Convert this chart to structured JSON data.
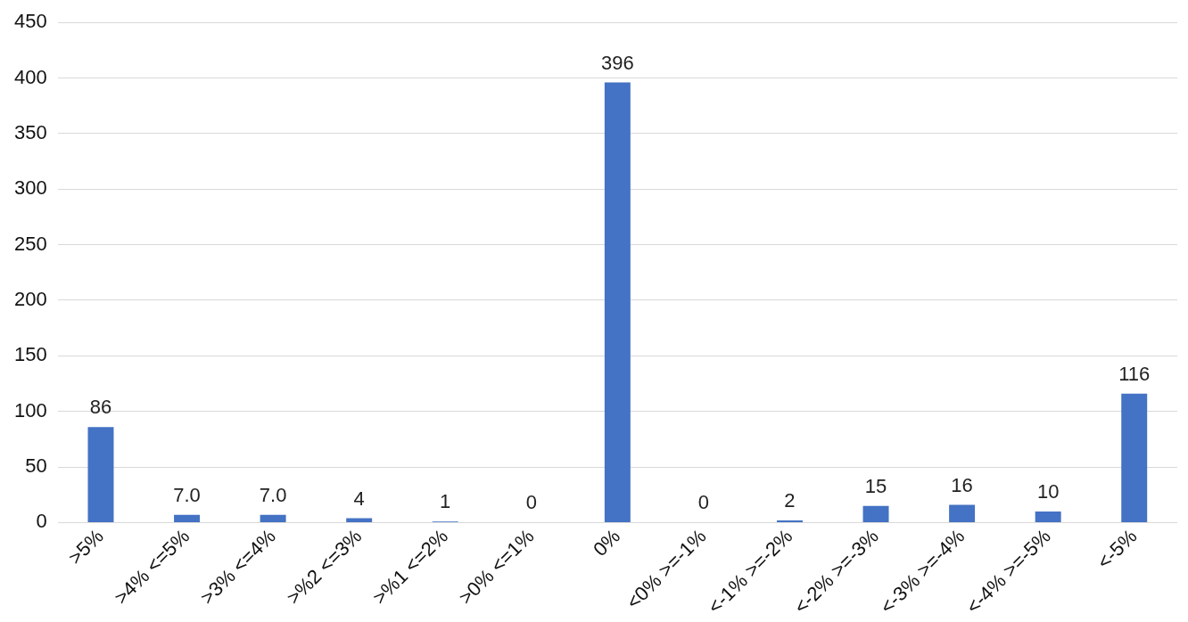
{
  "chart_data": {
    "type": "bar",
    "categories": [
      ">5%",
      ">4% <=5%",
      ">3% <=4%",
      ">%2 <=3%",
      ">%1 <=2%",
      ">0% <=1%",
      "0%",
      "<0% >=-1%",
      "<-1% >=-2%",
      "<-2% >=-3%",
      "<-3% >=-4%",
      "<-4% >=-5%",
      "<-5%"
    ],
    "values": [
      86,
      7,
      7,
      4,
      1,
      0,
      396,
      0,
      2,
      15,
      16,
      10,
      116
    ],
    "value_labels": [
      "86",
      "7.0",
      "7.0",
      "4",
      "1",
      "0",
      "396",
      "0",
      "2",
      "15",
      "16",
      "10",
      "116"
    ],
    "color": "#4472c4",
    "ylim": [
      0,
      450
    ],
    "yticks": [
      0,
      50,
      100,
      150,
      200,
      250,
      300,
      350,
      400,
      450
    ],
    "grid": "y",
    "legend": false
  }
}
